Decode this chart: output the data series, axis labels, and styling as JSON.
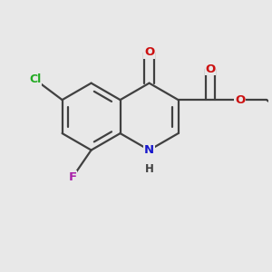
{
  "bg": "#e8e8e8",
  "bond_color": "#404040",
  "bond_lw": 1.6,
  "colors": {
    "N": "#1818cc",
    "O": "#cc1010",
    "Cl": "#22aa22",
    "F": "#aa22aa",
    "H": "#404040"
  },
  "figsize": [
    3.0,
    3.0
  ],
  "dpi": 100
}
